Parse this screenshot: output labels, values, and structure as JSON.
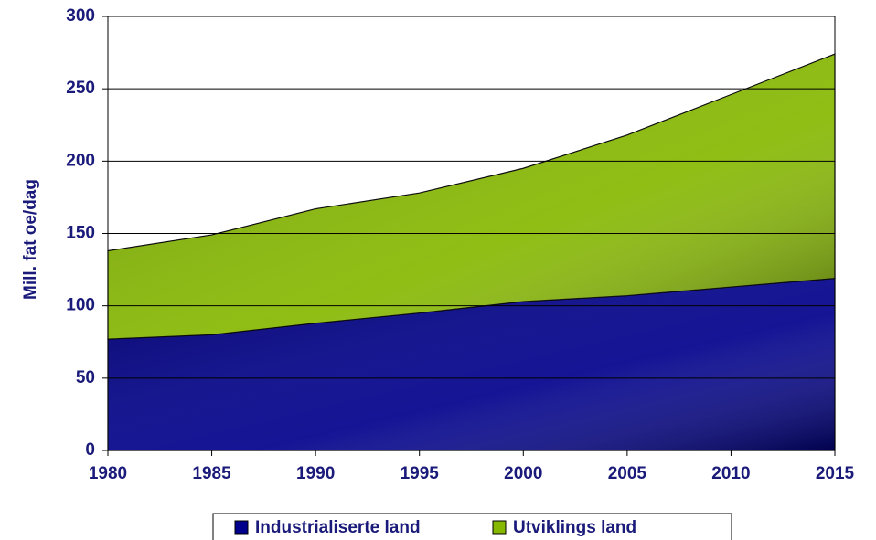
{
  "chart_data": {
    "type": "area",
    "stacked": true,
    "y_label": "Mill. fat oe/dag",
    "x": [
      1980,
      1985,
      1990,
      1995,
      2000,
      2005,
      2010,
      2015
    ],
    "series": [
      {
        "name": "Industrialiserte land",
        "color": "#00008c",
        "values": [
          77,
          80,
          88,
          95,
          103,
          107,
          113,
          119
        ]
      },
      {
        "name": "Utviklings land",
        "color": "#86b800",
        "values": [
          61,
          69,
          79,
          83,
          92,
          111,
          133,
          155
        ]
      }
    ],
    "xlim": [
      1980,
      2015
    ],
    "xticks": [
      1980,
      1985,
      1990,
      1995,
      2000,
      2005,
      2010,
      2015
    ],
    "ylim": [
      0,
      300
    ],
    "yticks": [
      0,
      50,
      100,
      150,
      200,
      250,
      300
    ],
    "grid": true,
    "legend": "bottom"
  }
}
